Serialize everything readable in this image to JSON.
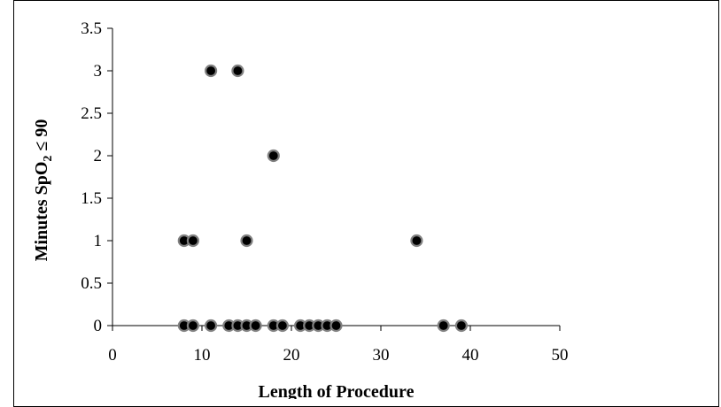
{
  "chart_data": {
    "type": "scatter",
    "title": "",
    "xlabel": "Length of Procedure",
    "ylabel": {
      "prefix": "Minutes SpO",
      "subscript": "2",
      "suffix": " ≤ 90"
    },
    "xlim": [
      0,
      50
    ],
    "ylim": [
      0,
      3.5
    ],
    "x_ticks": [
      0,
      10,
      20,
      30,
      40,
      50
    ],
    "y_ticks": [
      0,
      0.5,
      1,
      1.5,
      2,
      2.5,
      3,
      3.5
    ],
    "grid": false,
    "legend": "none",
    "marker_color": "#000000",
    "marker_edge_color": "#808080",
    "points": [
      {
        "x": 8,
        "y": 1
      },
      {
        "x": 9,
        "y": 1
      },
      {
        "x": 11,
        "y": 3
      },
      {
        "x": 14,
        "y": 3
      },
      {
        "x": 15,
        "y": 1
      },
      {
        "x": 18,
        "y": 2
      },
      {
        "x": 34,
        "y": 1
      },
      {
        "x": 8,
        "y": 0
      },
      {
        "x": 9,
        "y": 0
      },
      {
        "x": 11,
        "y": 0
      },
      {
        "x": 13,
        "y": 0
      },
      {
        "x": 14,
        "y": 0
      },
      {
        "x": 15,
        "y": 0
      },
      {
        "x": 16,
        "y": 0
      },
      {
        "x": 18,
        "y": 0
      },
      {
        "x": 19,
        "y": 0
      },
      {
        "x": 21,
        "y": 0
      },
      {
        "x": 22,
        "y": 0
      },
      {
        "x": 23,
        "y": 0
      },
      {
        "x": 24,
        "y": 0
      },
      {
        "x": 25,
        "y": 0
      },
      {
        "x": 37,
        "y": 0
      },
      {
        "x": 39,
        "y": 0
      }
    ]
  }
}
